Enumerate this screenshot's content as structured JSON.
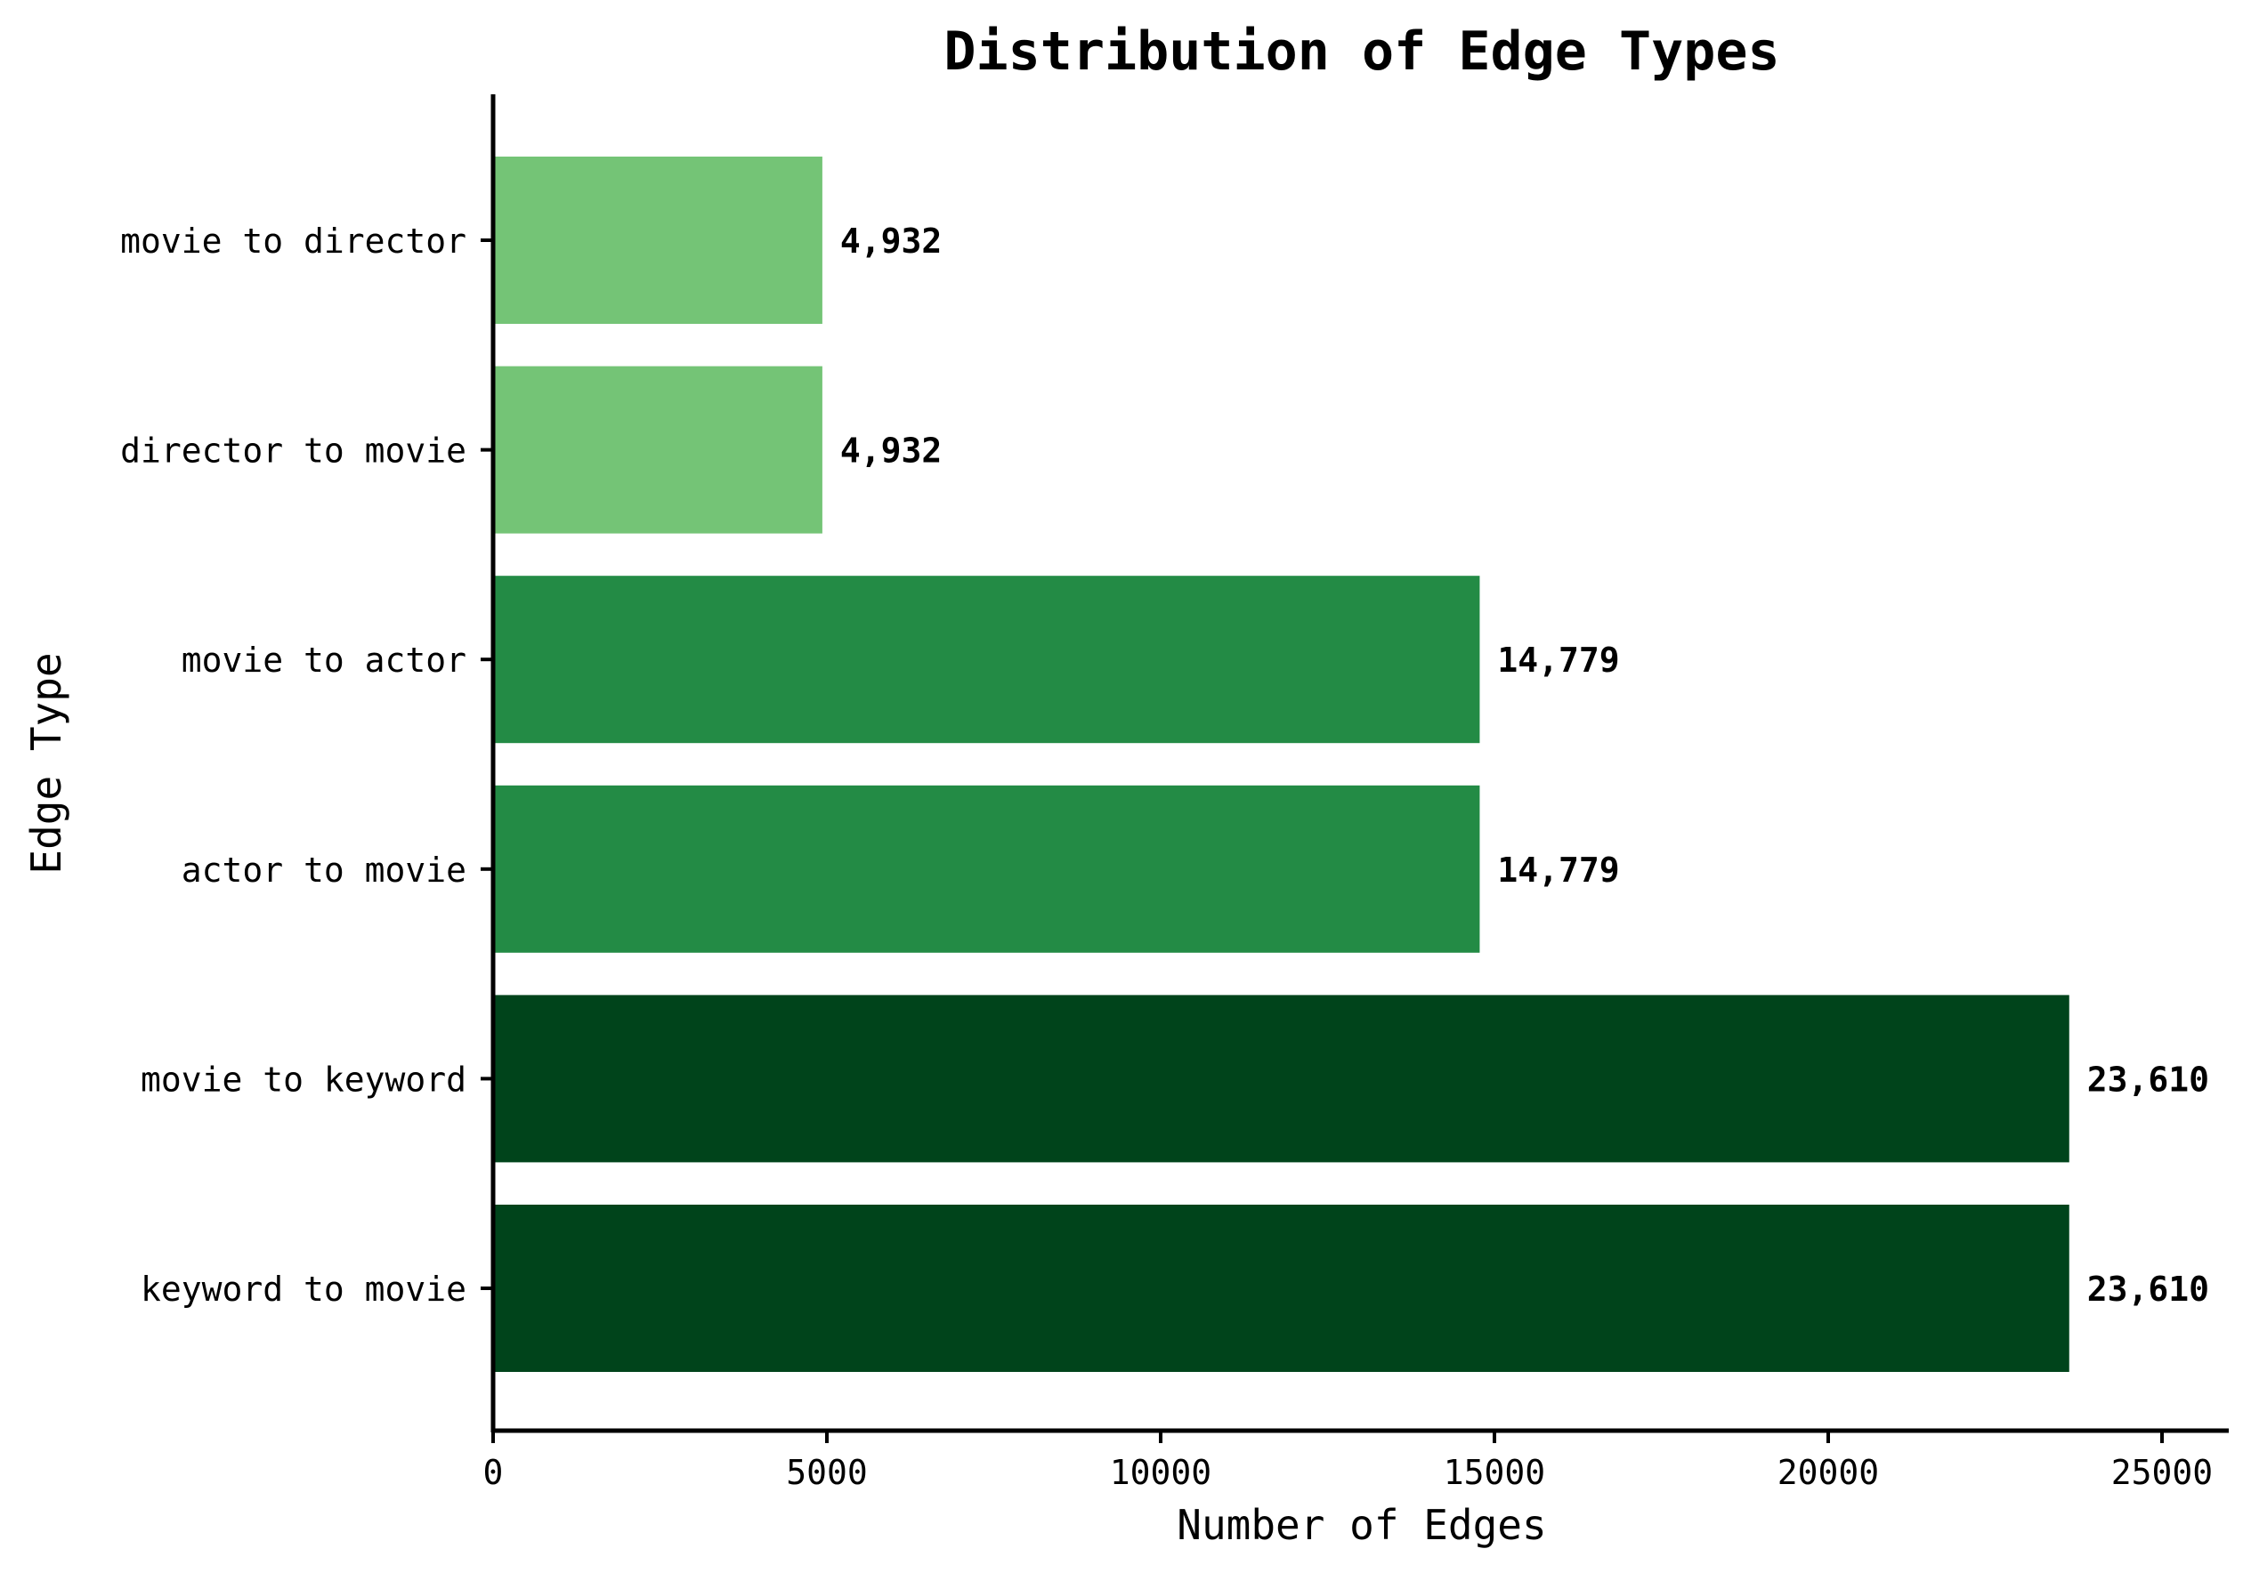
{
  "chart_data": {
    "type": "bar",
    "orientation": "horizontal",
    "title": "Distribution of Edge Types",
    "xlabel": "Number of Edges",
    "ylabel": "Edge Type",
    "xlim": [
      0,
      26000
    ],
    "xticks": [
      0,
      5000,
      10000,
      15000,
      20000,
      25000
    ],
    "grid": false,
    "categories": [
      "keyword to movie",
      "movie to keyword",
      "actor to movie",
      "movie to actor",
      "director to movie",
      "movie to director"
    ],
    "values": [
      23610,
      23610,
      14779,
      14779,
      4932,
      4932
    ],
    "data_labels": [
      "23,610",
      "23,610",
      "14,779",
      "14,779",
      "4,932",
      "4,932"
    ],
    "colors": [
      "#00441b",
      "#00441b",
      "#238b45",
      "#238b45",
      "#74c476",
      "#74c476"
    ]
  }
}
